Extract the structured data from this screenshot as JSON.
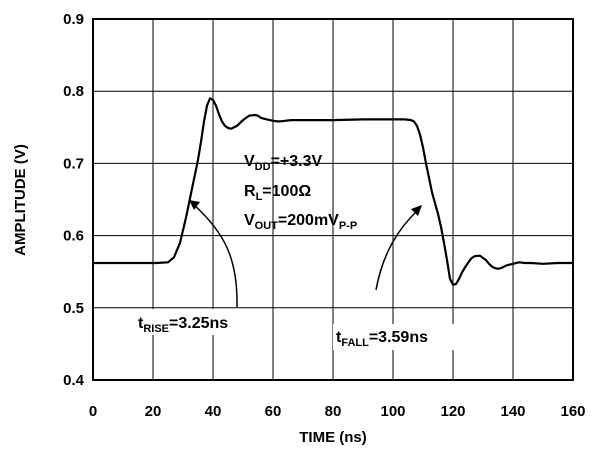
{
  "chart_data": {
    "type": "line",
    "title": "",
    "xlabel": "TIME (ns)",
    "ylabel": "AMPLITUDE (V)",
    "xlim": [
      0,
      160
    ],
    "ylim": [
      0.4,
      0.9
    ],
    "x_ticks": [
      "0",
      "20",
      "40",
      "60",
      "80",
      "100",
      "120",
      "140",
      "160"
    ],
    "y_ticks": [
      "0.4",
      "0.5",
      "0.6",
      "0.7",
      "0.8",
      "0.9"
    ],
    "grid": true,
    "legend": "none",
    "line_color": "#000000",
    "series": [
      {
        "x": [
          0,
          21,
          25,
          27,
          29,
          31,
          33,
          35,
          36,
          37,
          38,
          39,
          40,
          41,
          42,
          43,
          44,
          45,
          46,
          48,
          50,
          52,
          54,
          55,
          56,
          58,
          60,
          62,
          64,
          66,
          70,
          80,
          90,
          100,
          104,
          106,
          107,
          108,
          109,
          110,
          111,
          112,
          113,
          114,
          115,
          116,
          117,
          118,
          119,
          120,
          121,
          122,
          123,
          124,
          125,
          126,
          127,
          128,
          129,
          130,
          131,
          132,
          133,
          134,
          135,
          136,
          137,
          138,
          140,
          142,
          144,
          146,
          150,
          155,
          160
        ],
        "y": [
          0.562,
          0.562,
          0.563,
          0.57,
          0.59,
          0.625,
          0.665,
          0.705,
          0.73,
          0.758,
          0.78,
          0.79,
          0.788,
          0.78,
          0.768,
          0.758,
          0.752,
          0.749,
          0.748,
          0.752,
          0.76,
          0.766,
          0.767,
          0.766,
          0.763,
          0.761,
          0.759,
          0.758,
          0.759,
          0.76,
          0.76,
          0.76,
          0.761,
          0.761,
          0.761,
          0.76,
          0.758,
          0.752,
          0.74,
          0.722,
          0.7,
          0.68,
          0.66,
          0.645,
          0.63,
          0.612,
          0.59,
          0.566,
          0.54,
          0.532,
          0.533,
          0.54,
          0.549,
          0.556,
          0.562,
          0.568,
          0.571,
          0.572,
          0.572,
          0.569,
          0.566,
          0.561,
          0.557,
          0.555,
          0.554,
          0.555,
          0.557,
          0.559,
          0.561,
          0.563,
          0.562,
          0.562,
          0.561,
          0.562,
          0.562
        ]
      }
    ],
    "annotations": {
      "vdd": {
        "main": "V",
        "sub": "DD",
        "rest": "=+3.3V"
      },
      "rl": {
        "main": "R",
        "sub": "L",
        "rest": "=100Ω"
      },
      "vout": {
        "main": "V",
        "sub": "OUT",
        "rest": "=200mV",
        "sub2": "P-P"
      },
      "trise": {
        "main": "t",
        "sub": "RISE",
        "rest": "=3.25ns"
      },
      "tfall": {
        "main": "t",
        "sub": "FALL",
        "rest": "=3.59ns"
      }
    }
  }
}
